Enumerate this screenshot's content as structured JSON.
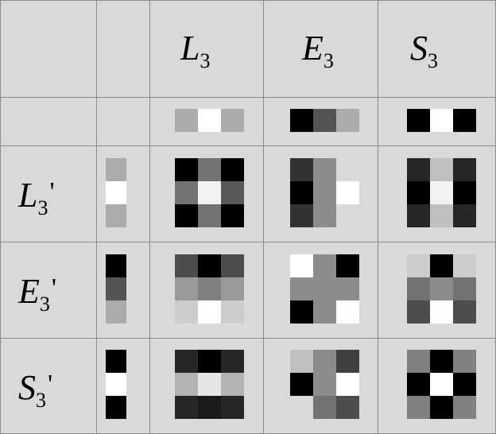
{
  "header": {
    "columns": [
      {
        "letter": "L",
        "sub": "3"
      },
      {
        "letter": "E",
        "sub": "3"
      },
      {
        "letter": "S",
        "sub": "3"
      }
    ]
  },
  "rows": [
    {
      "letter": "L",
      "sub": "3",
      "prime": "'"
    },
    {
      "letter": "E",
      "sub": "3",
      "prime": "'"
    },
    {
      "letter": "S",
      "sub": "3",
      "prime": "'"
    }
  ],
  "kernels_1d": {
    "L3": [
      0.67,
      1.0,
      0.67
    ],
    "E3": [
      0.0,
      0.33,
      0.67
    ],
    "S3": [
      0.0,
      1.0,
      0.0
    ]
  },
  "col_vectors": [
    [
      0.67,
      1.0,
      0.67
    ],
    [
      0.0,
      0.33,
      0.67
    ],
    [
      0.0,
      1.0,
      0.0
    ]
  ],
  "masks": [
    [
      [
        [
          0.0,
          0.45,
          0.0
        ],
        [
          0.45,
          0.95,
          0.35
        ],
        [
          0.0,
          0.45,
          0.0
        ]
      ],
      [
        [
          0.2,
          0.55,
          0.85
        ],
        [
          0.0,
          0.55,
          1.0
        ],
        [
          0.2,
          0.55,
          0.85
        ]
      ],
      [
        [
          0.15,
          0.75,
          0.15
        ],
        [
          0.0,
          0.95,
          0.0
        ],
        [
          0.15,
          0.75,
          0.15
        ]
      ]
    ],
    [
      [
        [
          0.3,
          0.0,
          0.3
        ],
        [
          0.6,
          0.5,
          0.6
        ],
        [
          0.8,
          1.0,
          0.8
        ]
      ],
      [
        [
          1.0,
          0.55,
          0.0
        ],
        [
          0.55,
          0.55,
          0.55
        ],
        [
          0.0,
          0.55,
          1.0
        ]
      ],
      [
        [
          0.8,
          0.0,
          0.8
        ],
        [
          0.45,
          0.55,
          0.45
        ],
        [
          0.3,
          1.0,
          0.3
        ]
      ]
    ],
    [
      [
        [
          0.15,
          0.0,
          0.15
        ],
        [
          0.7,
          0.9,
          0.7
        ],
        [
          0.15,
          0.1,
          0.15
        ]
      ],
      [
        [
          0.75,
          0.55,
          0.25
        ],
        [
          0.0,
          0.55,
          1.0
        ],
        [
          0.85,
          0.45,
          0.3
        ]
      ],
      [
        [
          0.5,
          0.0,
          0.5
        ],
        [
          0.0,
          1.0,
          0.0
        ],
        [
          0.5,
          0.0,
          0.5
        ]
      ]
    ]
  ]
}
